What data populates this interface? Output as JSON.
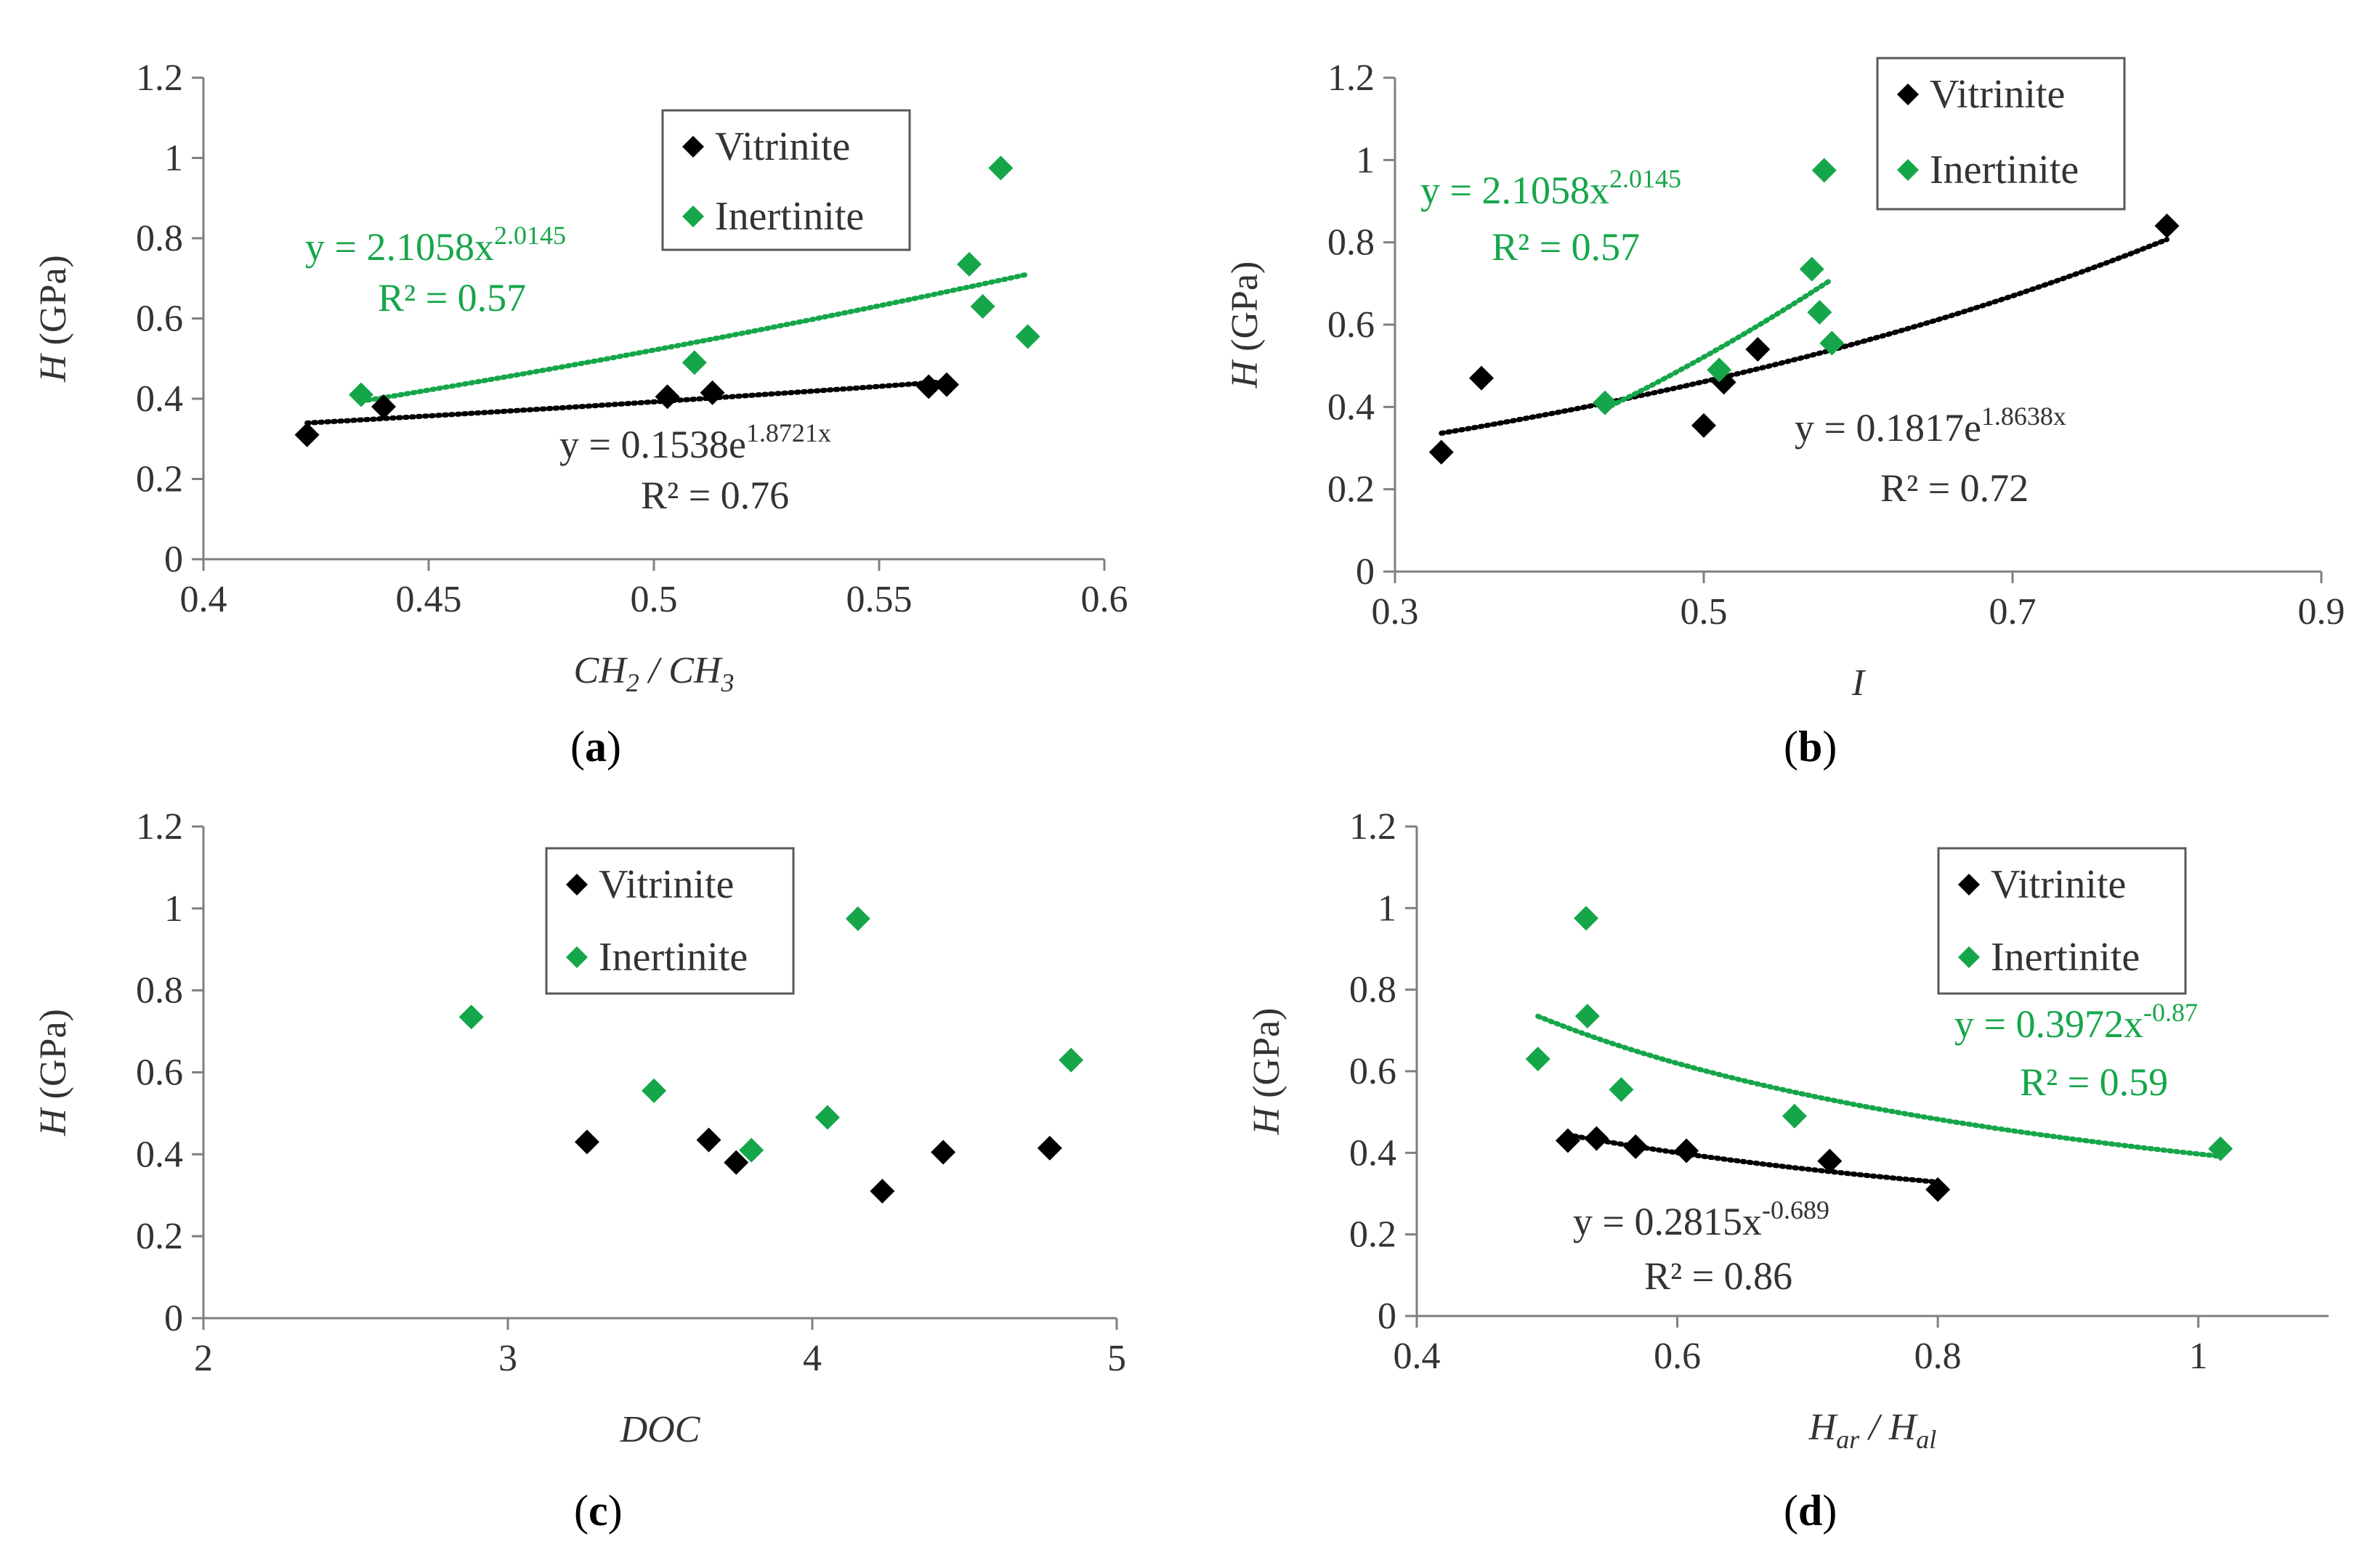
{
  "colors": {
    "vitrinite": "#000000",
    "inertinite": "#16a64a",
    "axis": "#7f7f7f",
    "text": "#333333"
  },
  "chart_data": [
    {
      "id": "a",
      "type": "scatter",
      "panel_label": {
        "prefix": "(",
        "letter": "a",
        "suffix": ")"
      },
      "ylabel": {
        "italic": "H",
        "rest": " (GPa)"
      },
      "xlabel": [
        {
          "t": "CH",
          "sub": ""
        },
        {
          "t": "2",
          "sub": "sub"
        },
        {
          "t": " / CH",
          "sub": ""
        },
        {
          "t": "3",
          "sub": "sub"
        }
      ],
      "xlim": [
        0.4,
        0.6
      ],
      "ylim": [
        0,
        1.2
      ],
      "xticks": [
        0.4,
        0.45,
        0.5,
        0.55,
        0.6
      ],
      "xtick_labels": [
        "0.4",
        "0.45",
        "0.5",
        "0.55",
        "0.6"
      ],
      "yticks": [
        0,
        0.2,
        0.4,
        0.6,
        0.8,
        1,
        1.2
      ],
      "ytick_labels": [
        "0",
        "0.2",
        "0.4",
        "0.6",
        "0.8",
        "1",
        "1.2"
      ],
      "legend": [
        "Vitrinite",
        "Inertinite"
      ],
      "legend_pos": "top-center",
      "series": [
        {
          "name": "Vitrinite",
          "points": [
            [
              0.423,
              0.31
            ],
            [
              0.44,
              0.38
            ],
            [
              0.503,
              0.405
            ],
            [
              0.513,
              0.415
            ],
            [
              0.561,
              0.43
            ],
            [
              0.565,
              0.435
            ]
          ]
        },
        {
          "name": "Inertinite",
          "points": [
            [
              0.435,
              0.41
            ],
            [
              0.509,
              0.49
            ],
            [
              0.57,
              0.735
            ],
            [
              0.573,
              0.63
            ],
            [
              0.577,
              0.975
            ],
            [
              0.583,
              0.555
            ]
          ]
        }
      ],
      "trendlines": [
        {
          "series": "Vitrinite",
          "model": "exp",
          "a": 0.1538,
          "b": 1.8721,
          "range": [
            0.423,
            0.565
          ],
          "eq_base": "y = 0.1538e",
          "eq_exp": "1.8721x",
          "r2": "R² = 0.76"
        },
        {
          "series": "Inertinite",
          "model": "power",
          "a": 2.1058,
          "b": 2.0145,
          "range": [
            0.435,
            0.583
          ],
          "eq_base": "y = 2.1058x",
          "eq_exp": "2.0145",
          "r2": "R² = 0.57"
        }
      ]
    },
    {
      "id": "b",
      "type": "scatter",
      "panel_label": {
        "prefix": "(",
        "letter": "b",
        "suffix": ")"
      },
      "ylabel": {
        "italic": "H",
        "rest": " (GPa)"
      },
      "xlabel": [
        {
          "t": "I",
          "sub": ""
        }
      ],
      "xlim": [
        0.3,
        0.9
      ],
      "ylim": [
        0,
        1.2
      ],
      "xticks": [
        0.3,
        0.5,
        0.7,
        0.9
      ],
      "xtick_labels": [
        "0.3",
        "0.5",
        "0.7",
        "0.9"
      ],
      "yticks": [
        0,
        0.2,
        0.4,
        0.6,
        0.8,
        1,
        1.2
      ],
      "ytick_labels": [
        "0",
        "0.2",
        "0.4",
        "0.6",
        "0.8",
        "1",
        "1.2"
      ],
      "legend": [
        "Vitrinite",
        "Inertinite"
      ],
      "legend_pos": "top-right",
      "series": [
        {
          "name": "Vitrinite",
          "points": [
            [
              0.33,
              0.29
            ],
            [
              0.356,
              0.47
            ],
            [
              0.5,
              0.355
            ],
            [
              0.513,
              0.46
            ],
            [
              0.535,
              0.54
            ],
            [
              0.8,
              0.84
            ]
          ]
        },
        {
          "name": "Inertinite",
          "points": [
            [
              0.436,
              0.41
            ],
            [
              0.51,
              0.49
            ],
            [
              0.57,
              0.735
            ],
            [
              0.575,
              0.63
            ],
            [
              0.578,
              0.975
            ],
            [
              0.583,
              0.555
            ]
          ]
        }
      ],
      "trendlines": [
        {
          "series": "Vitrinite",
          "model": "exp",
          "a": 0.1817,
          "b": 1.8638,
          "range": [
            0.33,
            0.8
          ],
          "eq_base": "y = 0.1817e",
          "eq_exp": "1.8638x",
          "r2": "R² = 0.72"
        },
        {
          "series": "Inertinite",
          "model": "power",
          "a": 2.1058,
          "b": 2.0145,
          "range": [
            0.436,
            0.583
          ],
          "eq_base": "y = 2.1058x",
          "eq_exp": "2.0145",
          "r2": "R² = 0.57"
        }
      ]
    },
    {
      "id": "c",
      "type": "scatter",
      "panel_label": {
        "prefix": "(",
        "letter": "c",
        "suffix": ")"
      },
      "ylabel": {
        "italic": "H",
        "rest": " (GPa)"
      },
      "xlabel": [
        {
          "t": "DOC",
          "sub": ""
        }
      ],
      "xlim": [
        2,
        5
      ],
      "ylim": [
        0,
        1.2
      ],
      "xticks": [
        2,
        3,
        4,
        5
      ],
      "xtick_labels": [
        "2",
        "3",
        "4",
        "5"
      ],
      "yticks": [
        0,
        0.2,
        0.4,
        0.6,
        0.8,
        1,
        1.2
      ],
      "ytick_labels": [
        "0",
        "0.2",
        "0.4",
        "0.6",
        "0.8",
        "1",
        "1.2"
      ],
      "legend": [
        "Vitrinite",
        "Inertinite"
      ],
      "legend_pos": "top-center",
      "series": [
        {
          "name": "Vitrinite",
          "points": [
            [
              3.26,
              0.43
            ],
            [
              3.66,
              0.435
            ],
            [
              3.75,
              0.38
            ],
            [
              4.23,
              0.31
            ],
            [
              4.43,
              0.405
            ],
            [
              4.78,
              0.415
            ]
          ]
        },
        {
          "name": "Inertinite",
          "points": [
            [
              2.88,
              0.735
            ],
            [
              3.48,
              0.555
            ],
            [
              3.8,
              0.41
            ],
            [
              4.05,
              0.49
            ],
            [
              4.15,
              0.975
            ],
            [
              4.85,
              0.63
            ]
          ]
        }
      ],
      "trendlines": []
    },
    {
      "id": "d",
      "type": "scatter",
      "panel_label": {
        "prefix": "(",
        "letter": "d",
        "suffix": ")"
      },
      "ylabel": {
        "italic": "H",
        "rest": " (GPa)"
      },
      "xlabel": [
        {
          "t": "H",
          "sub": ""
        },
        {
          "t": "ar",
          "sub": "sub"
        },
        {
          "t": " / H",
          "sub": ""
        },
        {
          "t": "al",
          "sub": "sub"
        }
      ],
      "xlim": [
        0.4,
        1.1
      ],
      "ylim": [
        0,
        1.2
      ],
      "xticks": [
        0.4,
        0.6,
        0.8,
        1
      ],
      "xtick_labels": [
        "0.4",
        "0.6",
        "0.8",
        "1"
      ],
      "yticks": [
        0,
        0.2,
        0.4,
        0.6,
        0.8,
        1,
        1.2
      ],
      "ytick_labels": [
        "0",
        "0.2",
        "0.4",
        "0.6",
        "0.8",
        "1",
        "1.2"
      ],
      "legend": [
        "Vitrinite",
        "Inertinite"
      ],
      "legend_pos": "top-right",
      "series": [
        {
          "name": "Vitrinite",
          "points": [
            [
              0.516,
              0.43
            ],
            [
              0.538,
              0.435
            ],
            [
              0.568,
              0.415
            ],
            [
              0.607,
              0.405
            ],
            [
              0.717,
              0.38
            ],
            [
              0.8,
              0.31
            ]
          ]
        },
        {
          "name": "Inertinite",
          "points": [
            [
              0.493,
              0.63
            ],
            [
              0.53,
              0.975
            ],
            [
              0.531,
              0.735
            ],
            [
              0.557,
              0.555
            ],
            [
              0.69,
              0.49
            ],
            [
              1.017,
              0.41
            ]
          ]
        }
      ],
      "trendlines": [
        {
          "series": "Vitrinite",
          "model": "power",
          "a": 0.2815,
          "b": -0.689,
          "range": [
            0.516,
            0.8
          ],
          "eq_base": "y = 0.2815x",
          "eq_exp": "-0.689",
          "r2": "R² = 0.86"
        },
        {
          "series": "Inertinite",
          "model": "power",
          "a": 0.3972,
          "b": -0.87,
          "range": [
            0.493,
            1.017
          ],
          "eq_base": "y = 0.3972x",
          "eq_exp": "-0.87",
          "r2": "R² = 0.59"
        }
      ]
    }
  ]
}
